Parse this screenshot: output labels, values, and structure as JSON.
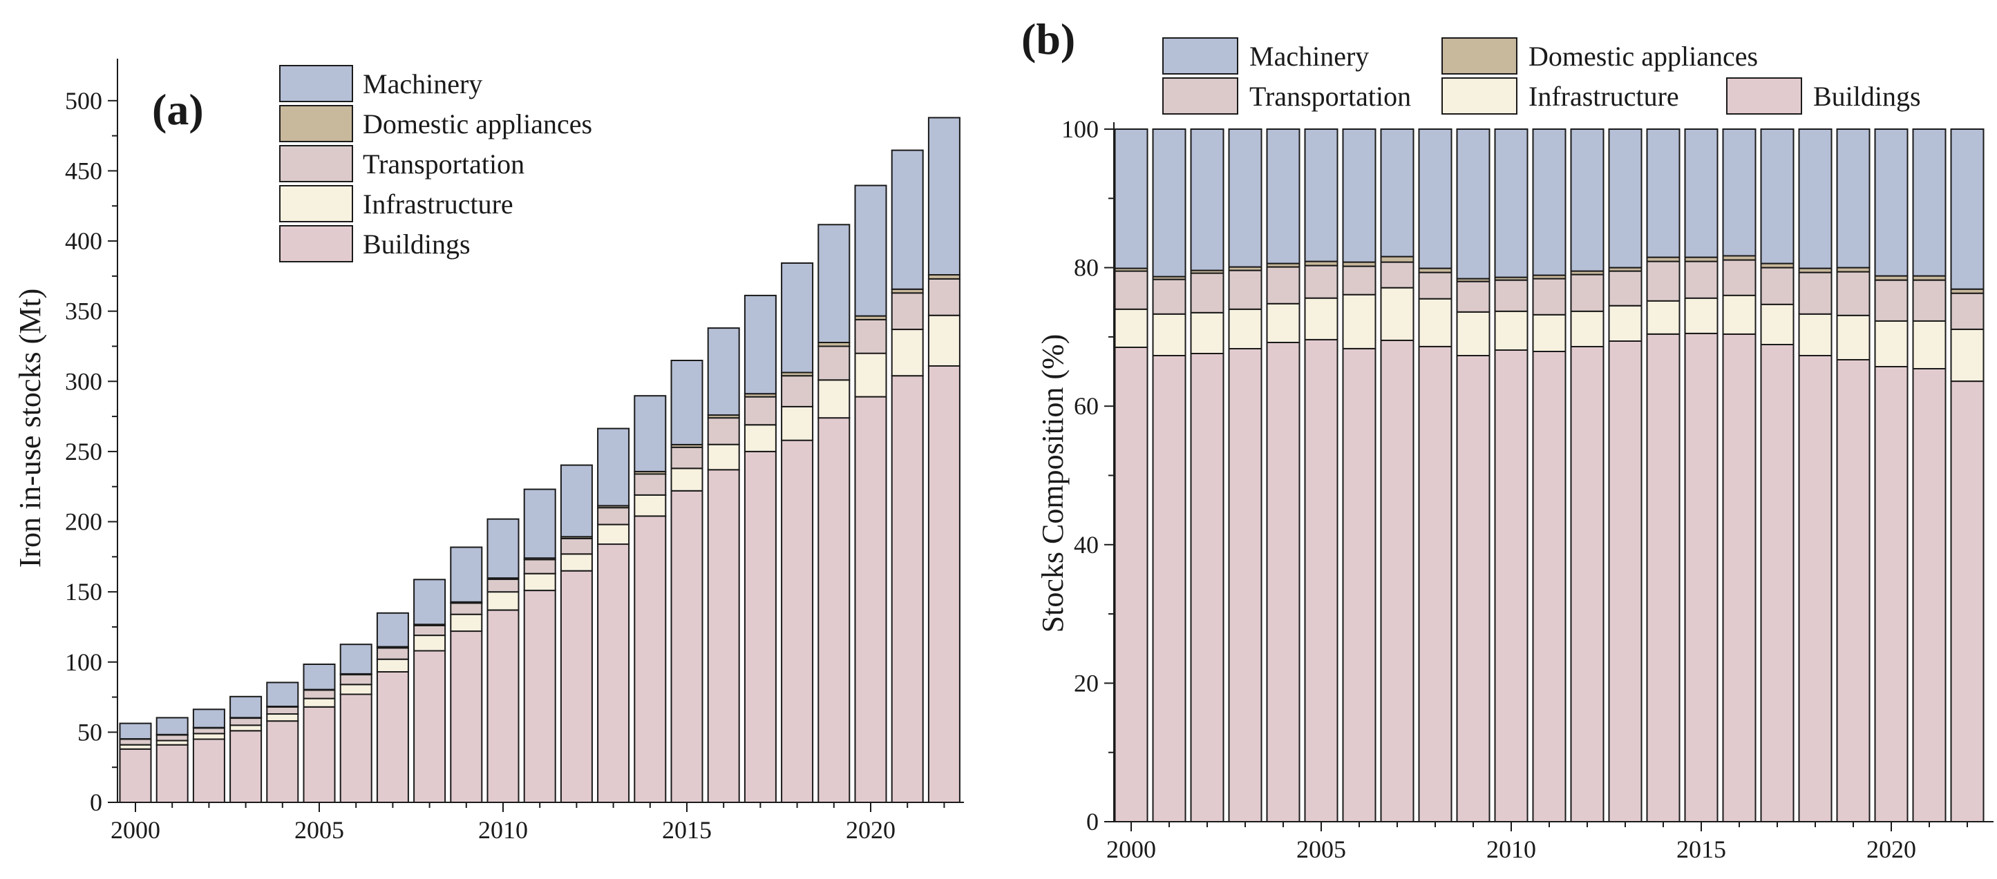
{
  "colors": {
    "Machinery": "#b5bfd6",
    "Domestic appliances": "#c8b89c",
    "Transportation": "#dccaca",
    "Infrastructure": "#f7f1df",
    "Buildings": "#e2cbcf",
    "stroke": "#1a1a1a"
  },
  "chart_data": [
    {
      "type": "bar",
      "stacked": true,
      "panel_label": "(a)",
      "title": "",
      "xlabel": "",
      "ylabel": "Iron in-use stocks (Mt)",
      "ylim": [
        0,
        525
      ],
      "yticks": [
        "0",
        "50",
        "100",
        "150",
        "200",
        "250",
        "300",
        "350",
        "400",
        "450",
        "500"
      ],
      "xticks": [
        "2000",
        "2005",
        "2010",
        "2015",
        "2020"
      ],
      "legend_labels": [
        "Machinery",
        "Domestic appliances",
        "Transportation",
        "Infrastructure",
        "Buildings"
      ],
      "legend_position": "top-left",
      "categories": [
        2000,
        2001,
        2002,
        2003,
        2004,
        2005,
        2006,
        2007,
        2008,
        2009,
        2010,
        2011,
        2012,
        2013,
        2014,
        2015,
        2016,
        2017,
        2018,
        2019,
        2020,
        2021,
        2022
      ],
      "series": [
        {
          "name": "Buildings",
          "values": [
            38,
            41,
            45,
            51,
            58,
            68,
            77,
            93,
            108,
            122,
            137,
            151,
            165,
            184,
            204,
            222,
            237,
            250,
            258,
            274,
            289,
            304,
            311
          ]
        },
        {
          "name": "Infrastructure",
          "values": [
            3,
            3,
            4,
            4,
            5,
            6,
            7,
            9,
            11,
            12,
            13,
            12,
            12,
            14,
            15,
            16,
            18,
            19,
            24,
            27,
            31,
            33,
            36
          ]
        },
        {
          "name": "Transportation",
          "values": [
            4,
            4,
            4,
            5,
            5,
            6,
            7,
            8,
            7,
            8,
            9,
            10,
            11,
            12,
            15,
            15,
            19,
            20,
            22,
            24,
            24,
            26,
            26
          ]
        },
        {
          "name": "Domestic appliances",
          "values": [
            0.3,
            0.3,
            0.3,
            0.4,
            0.4,
            0.4,
            0.6,
            0.9,
            0.8,
            0.8,
            0.9,
            1.1,
            1.3,
            1.4,
            1.7,
            1.9,
            2,
            2.2,
            2.3,
            2.7,
            2.6,
            2.7,
            2.9
          ]
        },
        {
          "name": "Machinery",
          "values": [
            11,
            12,
            13,
            15,
            17,
            18,
            21,
            24,
            32,
            39,
            42,
            49,
            51,
            55,
            54,
            60,
            62,
            70,
            78,
            84,
            93,
            99,
            112
          ]
        }
      ]
    },
    {
      "type": "bar",
      "stacked": true,
      "panel_label": "(b)",
      "title": "",
      "xlabel": "",
      "ylabel": "Stocks Composition (%)",
      "ylim": [
        0,
        100
      ],
      "yticks": [
        "0",
        "20",
        "40",
        "60",
        "80",
        "100"
      ],
      "xticks": [
        "2000",
        "2005",
        "2010",
        "2015",
        "2020"
      ],
      "legend_labels": [
        "Machinery",
        "Domestic appliances",
        "Transportation",
        "Infrastructure",
        "Buildings"
      ],
      "legend_position": "top",
      "categories": [
        2000,
        2001,
        2002,
        2003,
        2004,
        2005,
        2006,
        2007,
        2008,
        2009,
        2010,
        2011,
        2012,
        2013,
        2014,
        2015,
        2016,
        2017,
        2018,
        2019,
        2020,
        2021,
        2022
      ],
      "series": [
        {
          "name": "Buildings",
          "values": [
            68.5,
            67.3,
            67.6,
            68.3,
            69.2,
            69.6,
            68.3,
            69.5,
            68.6,
            67.3,
            68.1,
            67.9,
            68.6,
            69.4,
            70.4,
            70.5,
            70.4,
            68.9,
            67.3,
            66.7,
            65.7,
            65.4,
            63.6
          ]
        },
        {
          "name": "Infrastructure",
          "values": [
            5.5,
            6.0,
            5.9,
            5.7,
            5.6,
            6.0,
            7.8,
            7.6,
            6.9,
            6.3,
            5.6,
            5.3,
            5.1,
            5.1,
            4.8,
            5.1,
            5.6,
            5.8,
            6.0,
            6.4,
            6.6,
            6.9,
            7.5
          ]
        },
        {
          "name": "Transportation",
          "values": [
            5.5,
            5.0,
            5.7,
            5.6,
            5.3,
            4.7,
            4.1,
            3.7,
            3.8,
            4.4,
            4.5,
            5.2,
            5.3,
            5.0,
            5.7,
            5.3,
            5.1,
            5.3,
            6.0,
            6.3,
            5.9,
            5.9,
            5.2
          ]
        },
        {
          "name": "Domestic appliances",
          "values": [
            0.4,
            0.4,
            0.4,
            0.5,
            0.5,
            0.6,
            0.6,
            0.8,
            0.6,
            0.4,
            0.4,
            0.5,
            0.5,
            0.5,
            0.6,
            0.6,
            0.6,
            0.6,
            0.6,
            0.6,
            0.6,
            0.6,
            0.6
          ]
        },
        {
          "name": "Machinery",
          "values": [
            20.1,
            21.3,
            20.4,
            19.9,
            19.4,
            19.1,
            19.2,
            18.4,
            20.1,
            21.6,
            21.4,
            21.1,
            20.5,
            20.0,
            18.5,
            18.5,
            18.3,
            19.4,
            20.1,
            20.0,
            21.2,
            21.2,
            23.1
          ]
        }
      ]
    }
  ]
}
